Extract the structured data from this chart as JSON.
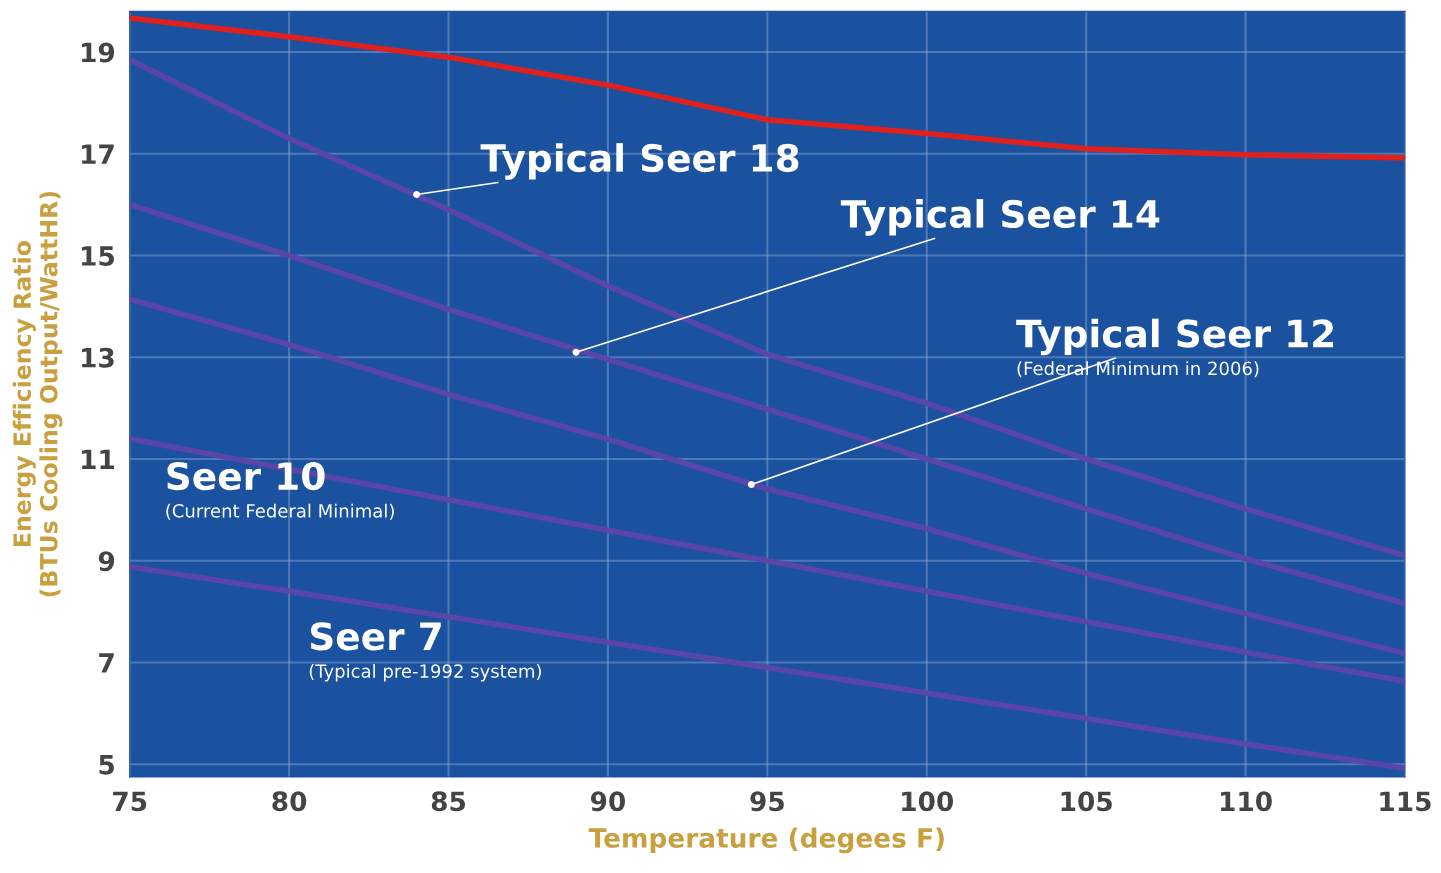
{
  "chart_data": {
    "type": "line",
    "xlabel": "Temperature (degees F)",
    "ylabel": "Energy Efficiency Ratio\n(BTUs Cooling Output/WattHR)",
    "x": [
      75,
      80,
      85,
      90,
      95,
      100,
      105,
      110,
      115
    ],
    "series": [
      {
        "color": "#e0201c",
        "values": [
          19.67,
          19.3,
          18.9,
          18.35,
          17.67,
          17.4,
          17.1,
          16.98,
          16.92
        ]
      },
      {
        "color": "#5a45a8",
        "values": [
          18.85,
          17.3,
          15.9,
          14.4,
          13.06,
          12.1,
          11.0,
          10.02,
          9.1
        ]
      },
      {
        "color": "#5a45a8",
        "values": [
          16.0,
          15.0,
          13.94,
          12.96,
          11.98,
          11.0,
          10.02,
          9.04,
          8.16
        ]
      },
      {
        "color": "#5a45a8",
        "values": [
          14.14,
          13.25,
          12.27,
          11.39,
          10.41,
          9.63,
          8.75,
          7.96,
          7.18
        ]
      },
      {
        "color": "#5a45a8",
        "values": [
          11.4,
          10.8,
          10.2,
          9.6,
          9.0,
          8.4,
          7.8,
          7.2,
          6.63
        ]
      },
      {
        "color": "#5a45a8",
        "values": [
          8.88,
          8.4,
          7.9,
          7.4,
          6.9,
          6.4,
          5.9,
          5.4,
          4.92
        ]
      }
    ],
    "annotations": [
      {
        "text": "Typical Seer 18",
        "x": 84,
        "y": 16.2
      },
      {
        "text": "Typical Seer 14",
        "x": 89,
        "y": 13.1
      },
      {
        "text": "Typical Seer 12",
        "x": 94.5,
        "y": 10.5
      },
      "(Federal Minimum in 2006)",
      "Seer 10",
      "(Current Federal Minimal)",
      "Seer 7",
      "(Typical pre-1992 system)"
    ],
    "xlim": [
      75,
      115
    ],
    "xticks": [
      75,
      80,
      85,
      90,
      95,
      100,
      105,
      110,
      115
    ],
    "ylim": [
      4.75,
      19.8
    ],
    "yticks": [
      5,
      7,
      9,
      11,
      13,
      15,
      17,
      19
    ],
    "grid": true,
    "legend": false
  }
}
